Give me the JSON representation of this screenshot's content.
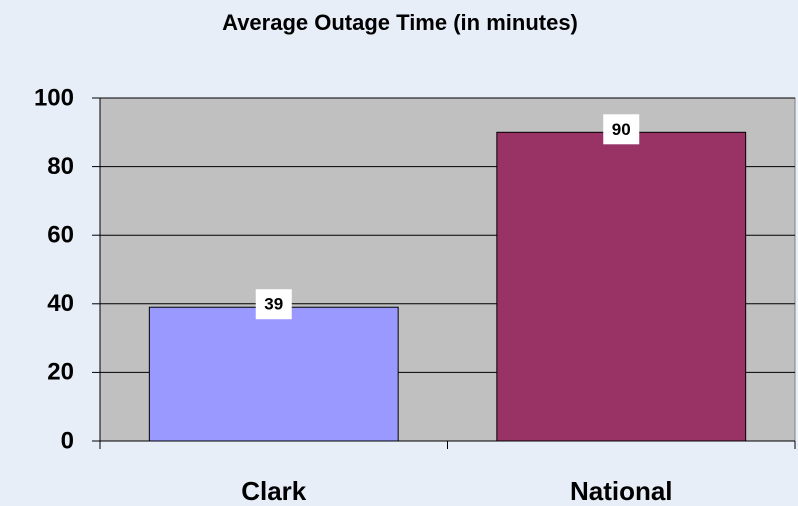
{
  "chart_data": {
    "type": "bar",
    "title": "Average Outage Time (in minutes)",
    "categories": [
      "Clark",
      "National"
    ],
    "values": [
      39,
      90
    ],
    "colors": [
      "#9999ff",
      "#993366"
    ],
    "ylim": [
      0,
      100
    ],
    "yticks": [
      0,
      20,
      40,
      60,
      80,
      100
    ],
    "grid": true
  }
}
